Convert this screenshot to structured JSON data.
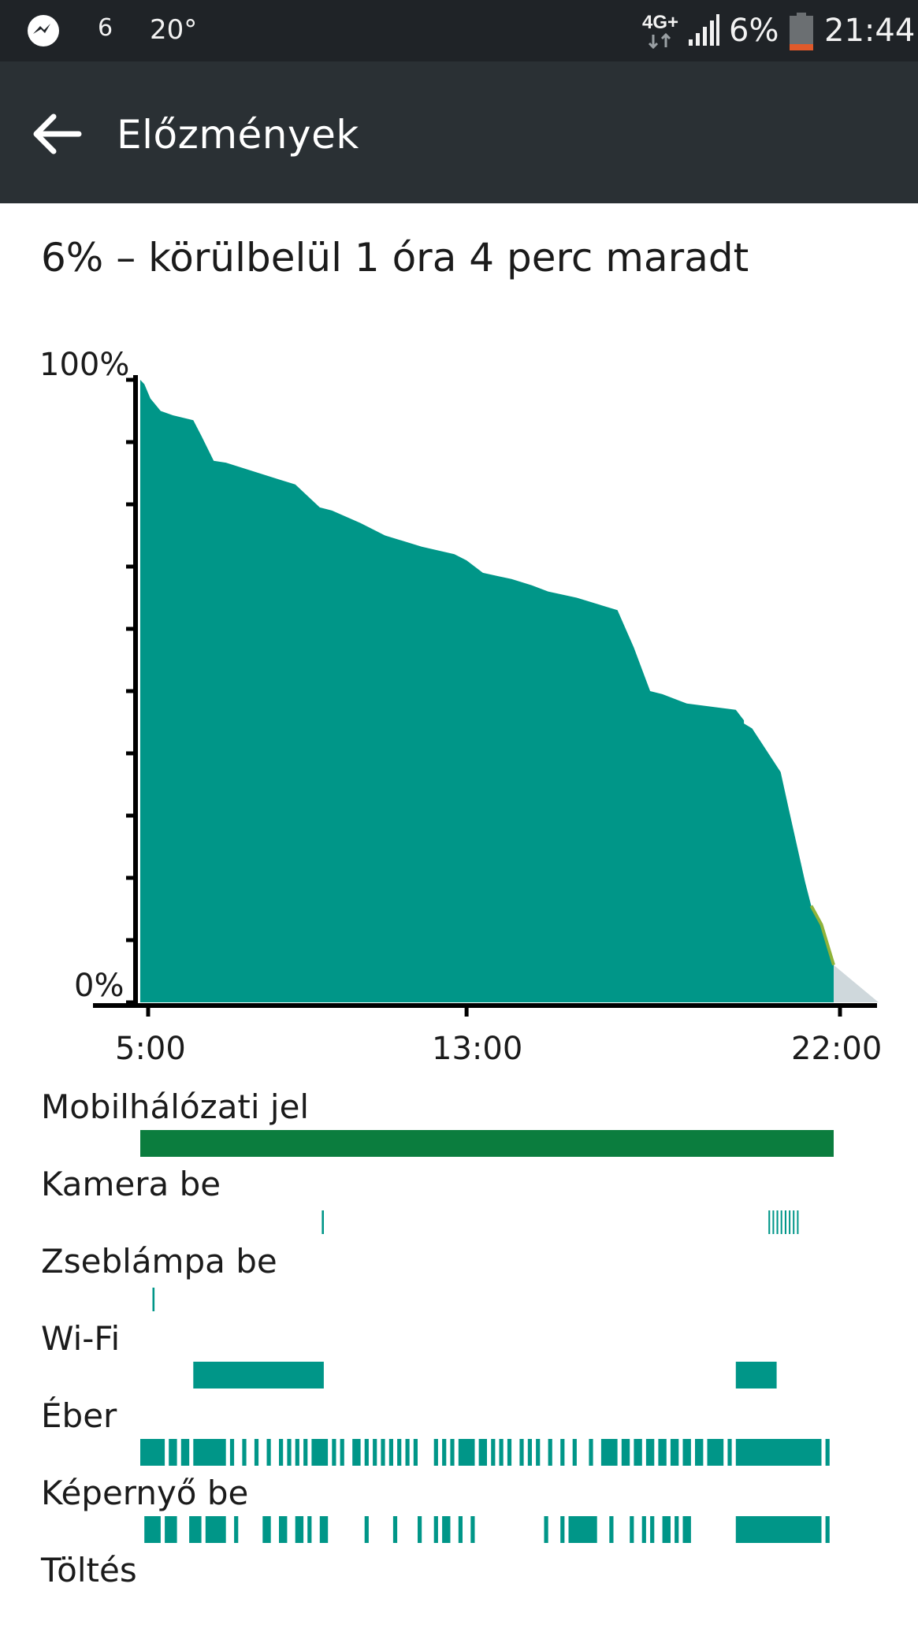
{
  "status_bar": {
    "notification_count": "6",
    "temperature": "20°",
    "network_type": "4G+",
    "battery_percent": "6%",
    "time": "21:44",
    "icons": [
      "messenger-icon",
      "network-4g-icon",
      "signal-icon",
      "battery-icon"
    ]
  },
  "app_bar": {
    "title": "Előzmények",
    "back_icon": "arrow-left-icon"
  },
  "summary": "6% – körülbelül 1 óra 4 perc maradt",
  "colors": {
    "status_bar": "#1f2327",
    "app_bar": "#2a3034",
    "accent": "#009688",
    "signal_green": "#0b7d3e",
    "low_battery": "#8fb33a",
    "projection": "#cfd8dc"
  },
  "chart_data": {
    "type": "area",
    "ylabels": [
      "100%",
      "0%"
    ],
    "xlabels": [
      "5:00",
      "13:00",
      "22:00"
    ],
    "ylim": [
      0,
      100
    ],
    "x_unit": "hours",
    "xlim": [
      5,
      22
    ],
    "series": [
      {
        "x": [
          5.0,
          5.1,
          5.25,
          5.5,
          5.8,
          6.3,
          6.5,
          6.8,
          7.1,
          8.4,
          8.8,
          9.4,
          9.7,
          10.4,
          11.0,
          11.5,
          11.9,
          12.7,
          13.0,
          13.4,
          14.1,
          14.6,
          15.0,
          15.7,
          16.7,
          17.1,
          17.5,
          17.8,
          18.4,
          19.6,
          19.8,
          19.8,
          20.0,
          20.7,
          20.9,
          21.3,
          21.45,
          21.7,
          22.0
        ],
        "y": [
          100,
          99.3,
          97.0,
          95.0,
          94.3,
          93.5,
          91.0,
          87.0,
          86.7,
          84.0,
          83.2,
          79.5,
          79.0,
          77.0,
          75.0,
          74.0,
          73.2,
          72.0,
          71.0,
          69.0,
          68.0,
          67.0,
          66.0,
          65.0,
          63.0,
          57.0,
          50.0,
          49.5,
          48.0,
          47.0,
          45.3,
          44.8,
          44.0,
          37.0,
          31.0,
          19.3,
          15.5,
          12.5,
          6.0
        ]
      },
      {
        "x": [
          22.0,
          23.1
        ],
        "y": [
          6.0,
          0
        ]
      }
    ]
  },
  "tracks": [
    {
      "label": "Mobilhálózati jel",
      "bar": "signal",
      "segments": [
        [
          5.0,
          22.0
        ]
      ]
    },
    {
      "label": "Kamera be",
      "bar": "thin",
      "segments": [
        [
          9.45,
          9.5
        ],
        [
          20.4,
          20.44
        ],
        [
          20.5,
          20.53
        ],
        [
          20.6,
          20.64
        ],
        [
          20.7,
          20.73
        ],
        [
          20.8,
          20.84
        ],
        [
          20.9,
          20.93
        ],
        [
          21.0,
          21.03
        ],
        [
          21.1,
          21.13
        ]
      ]
    },
    {
      "label": "Zseblámpa be",
      "bar": "thin",
      "segments": [
        [
          5.3,
          5.35
        ]
      ]
    },
    {
      "label": "Wi-Fi",
      "bar": "solid",
      "segments": [
        [
          6.3,
          9.5
        ],
        [
          19.6,
          20.6
        ]
      ]
    },
    {
      "label": "Éber",
      "bar": "solid",
      "segments": [
        [
          5.0,
          5.6
        ],
        [
          5.7,
          5.9
        ],
        [
          6.0,
          6.2
        ],
        [
          6.3,
          7.1
        ],
        [
          7.2,
          7.3
        ],
        [
          7.5,
          7.6
        ],
        [
          7.8,
          7.9
        ],
        [
          8.1,
          8.2
        ],
        [
          8.4,
          8.5
        ],
        [
          8.6,
          8.7
        ],
        [
          8.8,
          8.9
        ],
        [
          9.0,
          9.1
        ],
        [
          9.2,
          9.6
        ],
        [
          9.7,
          9.8
        ],
        [
          9.9,
          10.0
        ],
        [
          10.2,
          10.4
        ],
        [
          10.5,
          10.6
        ],
        [
          10.7,
          10.8
        ],
        [
          10.9,
          11.0
        ],
        [
          11.1,
          11.2
        ],
        [
          11.3,
          11.4
        ],
        [
          11.5,
          11.6
        ],
        [
          11.7,
          11.8
        ],
        [
          12.2,
          12.3
        ],
        [
          12.4,
          12.5
        ],
        [
          12.6,
          12.7
        ],
        [
          12.8,
          13.2
        ],
        [
          13.3,
          13.5
        ],
        [
          13.6,
          13.7
        ],
        [
          13.8,
          13.9
        ],
        [
          14.0,
          14.1
        ],
        [
          14.3,
          14.4
        ],
        [
          14.5,
          14.6
        ],
        [
          14.7,
          14.8
        ],
        [
          15.0,
          15.1
        ],
        [
          15.3,
          15.4
        ],
        [
          15.6,
          15.7
        ],
        [
          16.0,
          16.1
        ],
        [
          16.3,
          16.7
        ],
        [
          16.8,
          17.0
        ],
        [
          17.1,
          17.3
        ],
        [
          17.4,
          17.6
        ],
        [
          17.7,
          17.9
        ],
        [
          18.0,
          18.2
        ],
        [
          18.3,
          18.5
        ],
        [
          18.6,
          18.8
        ],
        [
          18.9,
          19.3
        ],
        [
          19.4,
          19.5
        ],
        [
          19.6,
          21.7
        ],
        [
          21.8,
          21.9
        ]
      ]
    },
    {
      "label": "Képernyő be",
      "bar": "solid",
      "segments": [
        [
          5.1,
          5.5
        ],
        [
          5.6,
          5.9
        ],
        [
          6.2,
          6.5
        ],
        [
          6.6,
          7.1
        ],
        [
          7.3,
          7.4
        ],
        [
          8.0,
          8.2
        ],
        [
          8.4,
          8.6
        ],
        [
          8.8,
          9.0
        ],
        [
          9.1,
          9.2
        ],
        [
          9.4,
          9.6
        ],
        [
          10.5,
          10.6
        ],
        [
          11.2,
          11.3
        ],
        [
          11.8,
          11.9
        ],
        [
          12.2,
          12.3
        ],
        [
          12.4,
          12.6
        ],
        [
          12.8,
          12.9
        ],
        [
          13.1,
          13.2
        ],
        [
          14.9,
          15.0
        ],
        [
          15.3,
          15.4
        ],
        [
          15.5,
          16.2
        ],
        [
          16.5,
          16.6
        ],
        [
          17.0,
          17.1
        ],
        [
          17.3,
          17.4
        ],
        [
          17.5,
          17.6
        ],
        [
          17.8,
          18.0
        ],
        [
          18.1,
          18.2
        ],
        [
          18.3,
          18.5
        ],
        [
          19.6,
          21.7
        ],
        [
          21.8,
          21.9
        ]
      ]
    },
    {
      "label": "Töltés",
      "bar": "solid",
      "segments": []
    }
  ]
}
